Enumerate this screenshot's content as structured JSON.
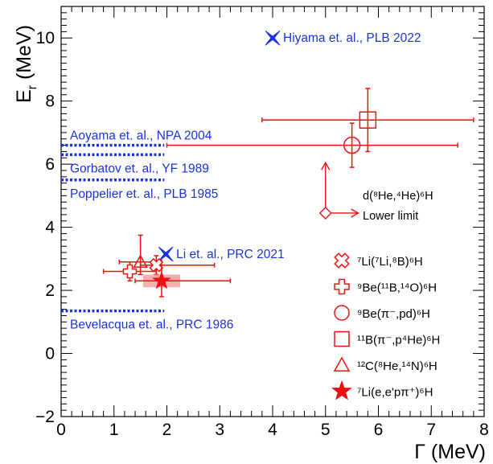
{
  "chart_data": {
    "type": "scatter",
    "title": "",
    "xlabel": "Γ (MeV)",
    "ylabel_main": "E",
    "ylabel_sub": "r",
    "ylabel_unit": " (MeV)",
    "xlim": [
      0,
      8
    ],
    "ylim": [
      -2,
      11
    ],
    "grid": false,
    "xticks": [
      0,
      1,
      2,
      3,
      4,
      5,
      6,
      7,
      8
    ],
    "yticks": [
      -2,
      0,
      2,
      4,
      6,
      8,
      10
    ],
    "xtick_labels": [
      "0",
      "1",
      "2",
      "3",
      "4",
      "5",
      "6",
      "7",
      "8"
    ],
    "ytick_labels": [
      "−2",
      "0",
      "2",
      "4",
      "6",
      "8",
      "10"
    ],
    "colors": {
      "data": "#ee1111",
      "theory": "#1a33dd",
      "axis": "#000000"
    },
    "theory_lines": [
      {
        "label": "Aoyama et. al., NPA 2004",
        "y": 6.6,
        "x0": 0,
        "x1": 1.95
      },
      {
        "label": "Gorbatov et. al., YF 1989",
        "y": 6.3,
        "x0": 0,
        "x1": 1.95
      },
      {
        "label": "Poppelier et. al., PLB 1985",
        "y": 5.5,
        "x0": 0,
        "x1": 1.95
      },
      {
        "label": "Bevelacqua et. al., PRC 1986",
        "y": 1.35,
        "x0": 0,
        "x1": 1.95
      }
    ],
    "theory_points": [
      {
        "label": "Hiyama et. al., PLB 2022",
        "x": 4.0,
        "y": 10.0
      },
      {
        "label": "Li et. al., PRC 2021",
        "x": 1.98,
        "y": 3.15
      }
    ],
    "series": [
      {
        "name": "⁷Li(⁷Li,⁸B)⁶H",
        "marker": "cross-open",
        "points": [
          {
            "x": 1.8,
            "y": 2.8,
            "xerr": [
              0.3,
              1.1
            ],
            "yerr": [
              0.3,
              0.3
            ]
          }
        ]
      },
      {
        "name": "⁹Be(¹¹B,¹⁴O)⁶H",
        "marker": "plus-open",
        "points": [
          {
            "x": 1.3,
            "y": 2.6,
            "xerr": [
              0.5,
              0.5
            ],
            "yerr": [
              0.3,
              0.3
            ]
          }
        ]
      },
      {
        "name": "⁹Be(π⁻,pd)⁶H",
        "marker": "circle-open",
        "points": [
          {
            "x": 5.5,
            "y": 6.6,
            "xerr": [
              3.5,
              2.0
            ],
            "yerr": [
              0.7,
              0.7
            ]
          }
        ]
      },
      {
        "name": "¹¹B(π⁻,p⁴He)⁶H",
        "marker": "square-open",
        "points": [
          {
            "x": 5.8,
            "y": 7.4,
            "xerr": [
              2.0,
              2.0
            ],
            "yerr": [
              1.0,
              1.0
            ]
          }
        ]
      },
      {
        "name": "¹²C(⁸He,¹⁴N)⁶H",
        "marker": "triangle-open",
        "points": [
          {
            "x": 1.5,
            "y": 2.9,
            "xerr": [
              0.4,
              0.4
            ],
            "yerr": [
              0.4,
              0.85
            ]
          }
        ]
      },
      {
        "name": "⁷Li(e,e'pπ⁺)⁶H",
        "marker": "star-filled",
        "points": [
          {
            "x": 1.9,
            "y": 2.3,
            "xerr": [
              0.5,
              1.3
            ],
            "yerr": [
              0.5,
              0.5
            ],
            "syst_box": [
              0.35,
              0.2
            ]
          }
        ]
      }
    ],
    "lower_limit": {
      "label_line1": "d(⁸He,⁴He)⁶H",
      "label_line2": "Lower limit",
      "x": 5.0,
      "y": 4.45,
      "arrow_up_to": 6.05,
      "arrow_right_to": 5.62
    }
  }
}
